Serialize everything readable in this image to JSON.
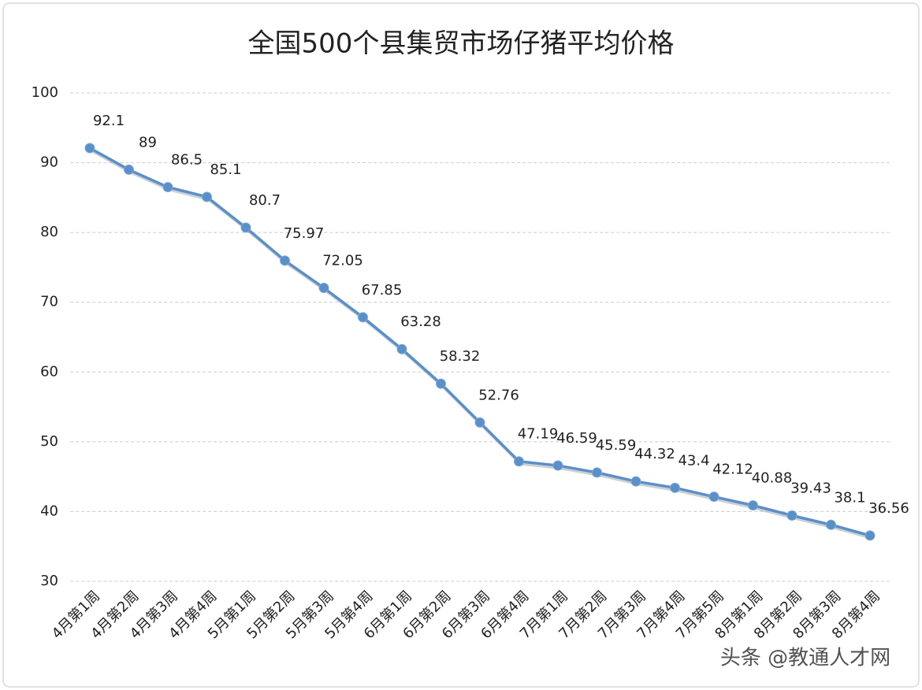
{
  "chart_data": {
    "type": "line",
    "title": "全国500个县集贸市场仔猪平均价格",
    "categories": [
      "4月第1周",
      "4月第2周",
      "4月第3周",
      "4月第4周",
      "5月第1周",
      "5月第2周",
      "5月第3周",
      "5月第4周",
      "6月第1周",
      "6月第2周",
      "6月第3周",
      "6月第4周",
      "7月第1周",
      "7月第2周",
      "7月第3周",
      "7月第4周",
      "7月第5周",
      "8月第1周",
      "8月第2周",
      "8月第3周",
      "8月第4周"
    ],
    "series": [
      {
        "color": "#5b8fc7",
        "values": [
          92.1,
          89,
          86.5,
          85.1,
          80.7,
          75.97,
          72.05,
          67.85,
          63.28,
          58.32,
          52.76,
          47.19,
          46.59,
          45.59,
          44.32,
          43.4,
          42.12,
          40.88,
          39.43,
          38.1,
          36.56
        ]
      }
    ],
    "ylim": [
      30,
      100
    ],
    "yticks": [
      30,
      40,
      50,
      60,
      70,
      80,
      90,
      100
    ],
    "grid": true,
    "watermark": "头条 @教通人才网"
  }
}
